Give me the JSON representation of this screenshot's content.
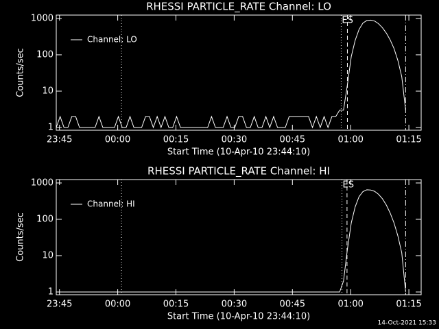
{
  "chart_data": [
    {
      "type": "line",
      "title": "RHESSI PARTICLE_RATE Channel: LO",
      "x_label": "Start Time (10-Apr-10 23:44:10)",
      "y_label": "Counts/sec",
      "x": [
        0,
        1,
        2,
        3,
        4,
        5,
        6,
        7,
        8,
        9,
        10,
        11,
        12,
        13,
        14,
        15,
        16,
        17,
        18,
        19,
        20,
        21,
        22,
        23,
        24,
        25,
        26,
        27,
        28,
        29,
        30,
        31,
        32,
        33,
        34,
        35,
        36,
        37,
        38,
        39,
        40,
        41,
        42,
        43,
        44,
        45,
        46,
        47,
        48,
        49,
        50,
        51,
        52,
        53,
        54,
        55,
        56,
        57,
        58,
        59,
        60,
        61,
        62,
        63,
        64,
        65,
        66,
        67,
        68,
        69,
        70,
        71,
        72,
        73,
        74,
        75,
        76,
        77,
        78,
        79,
        80,
        81,
        82,
        83,
        84,
        85,
        86,
        87,
        88,
        89,
        90
      ],
      "series": [
        {
          "name": "Channel: LO",
          "color": "#ffffff",
          "values": [
            1,
            2,
            1,
            1,
            2,
            2,
            1,
            1,
            1,
            1,
            1,
            2,
            1,
            1,
            1,
            1,
            2,
            1,
            1,
            2,
            1,
            1,
            1,
            2,
            2,
            1,
            2,
            1,
            2,
            1,
            1,
            2,
            1,
            1,
            1,
            1,
            1,
            1,
            1,
            1,
            2,
            1,
            1,
            1,
            2,
            1,
            1,
            2,
            2,
            1,
            1,
            2,
            1,
            1,
            2,
            1,
            2,
            1,
            1,
            1,
            2,
            2,
            2,
            2,
            2,
            2,
            1,
            2,
            1,
            2,
            1,
            2,
            2,
            3,
            3,
            15,
            90,
            250,
            500,
            750,
            880,
            900,
            850,
            720,
            560,
            400,
            260,
            150,
            70,
            25,
            3
          ]
        }
      ],
      "xlim": [
        0,
        94
      ],
      "ylim": [
        0.84,
        1240
      ],
      "log_y": true,
      "xticks": [
        {
          "value": 0.833,
          "label": "23:45"
        },
        {
          "value": 15.833,
          "label": "00:00"
        },
        {
          "value": 30.833,
          "label": "00:15"
        },
        {
          "value": 45.833,
          "label": "00:30"
        },
        {
          "value": 60.833,
          "label": "00:45"
        },
        {
          "value": 75.833,
          "label": "01:00"
        },
        {
          "value": 90.833,
          "label": "01:15"
        }
      ],
      "yticks": [
        1,
        10,
        100,
        1000
      ],
      "vlines": [
        {
          "x": 16.8,
          "style": "dotted"
        },
        {
          "x": 73.4,
          "style": "dotted",
          "label": "ES"
        },
        {
          "x": 75.0,
          "style": "dashed"
        },
        {
          "x": 90.0,
          "style": "dashdot"
        }
      ]
    },
    {
      "type": "line",
      "title": "RHESSI PARTICLE_RATE Channel: HI",
      "x_label": "Start Time (10-Apr-10 23:44:10)",
      "y_label": "Counts/sec",
      "x": [
        0,
        73,
        74,
        75,
        76,
        77,
        78,
        79,
        80,
        81,
        82,
        83,
        84,
        85,
        86,
        87,
        88,
        89,
        90
      ],
      "series": [
        {
          "name": "Channel: HI",
          "color": "#ffffff",
          "values": [
            1,
            1,
            2,
            15,
            80,
            220,
            420,
            580,
            650,
            640,
            590,
            490,
            370,
            250,
            150,
            80,
            35,
            12,
            1
          ]
        }
      ],
      "xlim": [
        0,
        94
      ],
      "ylim": [
        0.84,
        1240
      ],
      "log_y": true,
      "xticks": [
        {
          "value": 0.833,
          "label": "23:45"
        },
        {
          "value": 15.833,
          "label": "00:00"
        },
        {
          "value": 30.833,
          "label": "00:15"
        },
        {
          "value": 45.833,
          "label": "00:30"
        },
        {
          "value": 60.833,
          "label": "00:45"
        },
        {
          "value": 75.833,
          "label": "01:00"
        },
        {
          "value": 90.833,
          "label": "01:15"
        }
      ],
      "yticks": [
        1,
        10,
        100,
        1000
      ],
      "vlines": [
        {
          "x": 16.8,
          "style": "dotted"
        },
        {
          "x": 73.6,
          "style": "dotted",
          "label": "ES"
        },
        {
          "x": 74.9,
          "style": "dashed"
        },
        {
          "x": 90.0,
          "style": "dashdot"
        }
      ]
    }
  ],
  "footer": "14-Oct-2021 15:33"
}
